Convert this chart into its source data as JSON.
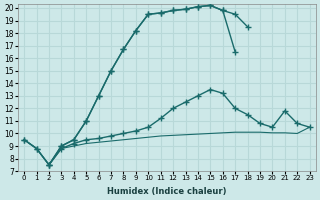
{
  "xlabel": "Humidex (Indice chaleur)",
  "background_color": "#cde8e8",
  "grid_color": "#b8d8d8",
  "line_color": "#1a6b6b",
  "xlim": [
    -0.5,
    23.5
  ],
  "ylim": [
    7,
    20.3
  ],
  "xticks": [
    0,
    1,
    2,
    3,
    4,
    5,
    6,
    7,
    8,
    9,
    10,
    11,
    12,
    13,
    14,
    15,
    16,
    17,
    18,
    19,
    20,
    21,
    22,
    23
  ],
  "yticks": [
    7,
    8,
    9,
    10,
    11,
    12,
    13,
    14,
    15,
    16,
    17,
    18,
    19,
    20
  ],
  "series1_x": [
    0,
    1,
    2,
    3,
    4,
    5,
    6,
    7,
    8,
    9,
    10,
    11,
    12,
    13,
    14,
    15,
    16,
    17,
    18
  ],
  "series1_y": [
    9.5,
    8.8,
    7.5,
    9.0,
    9.5,
    11.0,
    13.0,
    15.0,
    16.7,
    18.2,
    19.5,
    19.6,
    19.8,
    19.9,
    20.1,
    20.2,
    19.8,
    19.5,
    18.5
  ],
  "series2_x": [
    0,
    1,
    2,
    3,
    4,
    5,
    6,
    7,
    8,
    9,
    10,
    11,
    12,
    13,
    14,
    15,
    16,
    17
  ],
  "series2_y": [
    9.5,
    8.8,
    7.5,
    9.0,
    9.5,
    11.0,
    13.0,
    15.0,
    16.7,
    18.2,
    19.5,
    19.6,
    19.8,
    19.9,
    20.1,
    20.2,
    19.8,
    16.5
  ],
  "series3_x": [
    2,
    3,
    4,
    5,
    6,
    7,
    8,
    9,
    10,
    11,
    12,
    13,
    14,
    15,
    16,
    17,
    18,
    19,
    20,
    21,
    22,
    23
  ],
  "series3_y": [
    7.5,
    8.8,
    9.2,
    9.5,
    9.6,
    9.8,
    10.0,
    10.2,
    10.5,
    11.2,
    12.0,
    12.5,
    13.0,
    13.5,
    13.2,
    12.0,
    11.5,
    10.8,
    10.5,
    11.8,
    10.8,
    10.5
  ],
  "series4_x": [
    0,
    1,
    2,
    3,
    4,
    5,
    6,
    7,
    8,
    9,
    10,
    11,
    12,
    13,
    14,
    15,
    16,
    17,
    18,
    19,
    20,
    21,
    22,
    23
  ],
  "series4_y": [
    9.5,
    8.8,
    7.5,
    8.8,
    9.0,
    9.2,
    9.3,
    9.4,
    9.5,
    9.6,
    9.7,
    9.8,
    9.85,
    9.9,
    9.95,
    10.0,
    10.05,
    10.1,
    10.1,
    10.1,
    10.05,
    10.05,
    10.0,
    10.5
  ]
}
